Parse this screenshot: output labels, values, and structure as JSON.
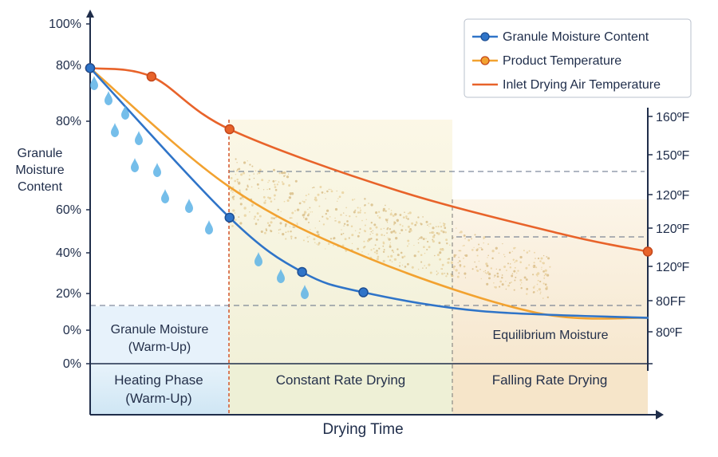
{
  "chart_data": {
    "type": "line",
    "xlabel": "Drying Time",
    "ylabel_left": [
      "Granule",
      "Moisture",
      "Content"
    ],
    "y_ticks_left": [
      "100%",
      "80%",
      "80%",
      "60%",
      "40%",
      "20%",
      "0%",
      "0%"
    ],
    "y_ticks_right": [
      "160ºF",
      "150ºF",
      "120ºF",
      "120ºF",
      "120ºF",
      "80FF",
      "80ºF"
    ],
    "phases": [
      {
        "label": [
          "Heating Phase",
          "(Warm-Up)"
        ],
        "color": "#d6eaf6"
      },
      {
        "label": [
          "Constant Rate Drying"
        ],
        "color": "#f4f1d8"
      },
      {
        "label": [
          "Falling Rate Drying"
        ],
        "color": "#f8ead2"
      }
    ],
    "annotations": [
      {
        "text": [
          "Granule Moisture",
          "(Warm-Up)"
        ]
      },
      {
        "text": [
          "Equilibrium Moisture"
        ]
      }
    ],
    "series": [
      {
        "name": "Granule Moisture Content",
        "color": "#2f74c8",
        "x": [
          0,
          25,
          38,
          49,
          70,
          100
        ],
        "y": [
          87,
          43,
          27,
          21,
          15.5,
          13.5
        ]
      },
      {
        "name": "Product Temperature",
        "color": "#f2a230",
        "x": [
          0,
          25,
          50,
          80,
          100
        ],
        "y": [
          87,
          52,
          31,
          15,
          13.5
        ]
      },
      {
        "name": "Inlet Drying Air Temperature",
        "color": "#e8632a",
        "x": [
          0,
          11,
          25,
          55,
          85,
          100
        ],
        "y": [
          87,
          84.5,
          69,
          51,
          38,
          33
        ]
      }
    ],
    "markers": {
      "Granule Moisture Content": [
        0,
        25,
        38,
        49
      ],
      "Product Temperature": [
        0
      ],
      "Inlet Drying Air Temperature": [
        0,
        11,
        25,
        100
      ]
    },
    "grid": false,
    "legend_position": "top-right"
  }
}
